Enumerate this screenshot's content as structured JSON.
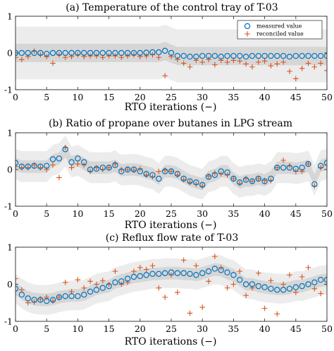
{
  "chart_data": [
    {
      "type": "scatter",
      "title": "(a) Temperature of the control tray of T-03",
      "xlabel": "RTO iterations (−)",
      "ylabel": "",
      "xlim": [
        0,
        50
      ],
      "ylim": [
        -1,
        1
      ],
      "xticks": [
        "0",
        "5",
        "10",
        "15",
        "20",
        "25",
        "30",
        "35",
        "40",
        "45",
        "50"
      ],
      "yticks": [
        "-1",
        "0",
        "1"
      ],
      "legend": {
        "placement": "top-right",
        "entries": [
          "measured value",
          "reconciled value"
        ]
      },
      "bands": {
        "inner_half_width": [
          0.25,
          0.25
        ],
        "outer_half_width": [
          0.72,
          0.72
        ],
        "center": [
          0.0,
          0.0,
          0.0,
          0.0,
          0.0,
          0.0,
          0.0,
          0.0,
          0.0,
          0.0,
          0.0,
          0.0,
          0.0,
          0.0,
          0.0,
          0.0,
          0.0,
          0.0,
          0.0,
          0.0,
          0.0,
          0.0,
          0.0,
          0.0,
          0.05,
          -0.02,
          -0.08,
          -0.08,
          -0.08,
          -0.08,
          -0.08,
          -0.08,
          -0.08,
          -0.08,
          -0.08,
          -0.08,
          -0.08,
          -0.08,
          -0.08,
          -0.08,
          -0.08,
          -0.08,
          -0.08,
          -0.08,
          -0.08,
          -0.08,
          -0.08,
          -0.08,
          -0.08,
          -0.08,
          -0.08
        ]
      },
      "series": [
        {
          "name": "measured value",
          "marker": "circle",
          "color": "#0072BD",
          "x": [
            0,
            1,
            2,
            3,
            4,
            5,
            6,
            7,
            8,
            9,
            10,
            11,
            12,
            13,
            14,
            15,
            16,
            17,
            18,
            19,
            20,
            21,
            22,
            23,
            24,
            25,
            26,
            27,
            28,
            29,
            30,
            31,
            32,
            33,
            34,
            35,
            36,
            37,
            38,
            39,
            40,
            41,
            42,
            43,
            44,
            45,
            46,
            47,
            48,
            49,
            50
          ],
          "y": [
            0.0,
            0.0,
            0.0,
            0.0,
            0.0,
            -0.02,
            0.0,
            0.0,
            0.0,
            0.0,
            0.0,
            0.0,
            0.0,
            0.0,
            0.0,
            0.0,
            0.0,
            0.0,
            0.0,
            0.0,
            0.0,
            0.01,
            0.02,
            0.02,
            0.06,
            0.0,
            -0.08,
            -0.08,
            -0.1,
            -0.1,
            -0.08,
            -0.08,
            -0.08,
            -0.1,
            -0.08,
            -0.08,
            -0.08,
            -0.1,
            -0.08,
            -0.08,
            -0.08,
            -0.08,
            -0.08,
            -0.08,
            -0.1,
            -0.08,
            -0.08,
            -0.08,
            -0.08,
            -0.08,
            -0.08
          ]
        },
        {
          "name": "reconciled value",
          "marker": "plus",
          "color": "#D95319",
          "x": [
            0,
            1,
            2,
            3,
            4,
            5,
            6,
            7,
            8,
            9,
            10,
            11,
            12,
            13,
            14,
            15,
            16,
            17,
            18,
            19,
            20,
            21,
            22,
            23,
            24,
            25,
            26,
            27,
            28,
            29,
            30,
            31,
            32,
            33,
            34,
            35,
            36,
            37,
            38,
            39,
            40,
            41,
            42,
            43,
            44,
            45,
            46,
            47,
            48,
            49,
            50
          ],
          "y": [
            -0.12,
            -0.18,
            -0.1,
            0.05,
            -0.05,
            -0.1,
            -0.28,
            -0.05,
            -0.12,
            -0.1,
            -0.05,
            -0.1,
            -0.08,
            -0.08,
            -0.12,
            -0.08,
            -0.08,
            -0.12,
            -0.08,
            -0.05,
            -0.1,
            -0.08,
            -0.05,
            -0.12,
            -0.62,
            -0.1,
            -0.18,
            -0.28,
            -0.38,
            -0.2,
            -0.25,
            -0.18,
            -0.32,
            -0.2,
            -0.25,
            -0.2,
            -0.22,
            -0.3,
            -0.38,
            -0.25,
            -0.22,
            -0.35,
            -0.3,
            -0.25,
            -0.5,
            -0.7,
            -0.42,
            -0.28,
            -0.38,
            -0.28,
            -0.48
          ]
        }
      ]
    },
    {
      "type": "scatter",
      "title": "(b) Ratio of propane over butanes in LPG stream",
      "xlabel": "RTO iterations (−)",
      "ylabel": "",
      "xlim": [
        0,
        50
      ],
      "ylim": [
        -1,
        1
      ],
      "xticks": [
        "0",
        "5",
        "10",
        "15",
        "20",
        "25",
        "30",
        "35",
        "40",
        "45",
        "50"
      ],
      "yticks": [
        "-1",
        "0",
        "1"
      ],
      "bands": {
        "inner_half_width": [
          0.17,
          0.17
        ],
        "outer_half_width": [
          0.42,
          0.42
        ],
        "center": [
          0.15,
          0.08,
          0.08,
          0.08,
          0.08,
          0.08,
          0.25,
          0.3,
          0.5,
          0.2,
          0.25,
          0.15,
          0.05,
          0.05,
          0.05,
          0.05,
          0.1,
          -0.02,
          0.0,
          0.0,
          -0.02,
          -0.08,
          -0.12,
          -0.25,
          -0.05,
          -0.05,
          -0.1,
          -0.2,
          -0.3,
          -0.35,
          -0.4,
          -0.2,
          -0.15,
          -0.05,
          -0.05,
          -0.25,
          -0.35,
          -0.3,
          -0.3,
          -0.25,
          -0.3,
          -0.2,
          0.05,
          0.05,
          0.05,
          0.02,
          0.05,
          0.1,
          -0.3,
          0.1,
          0.15
        ]
      },
      "series": [
        {
          "name": "measured value",
          "marker": "circle",
          "color": "#0072BD",
          "x": [
            0,
            1,
            2,
            3,
            4,
            5,
            6,
            7,
            8,
            9,
            10,
            11,
            12,
            13,
            14,
            15,
            16,
            17,
            18,
            19,
            20,
            21,
            22,
            23,
            24,
            25,
            26,
            27,
            28,
            29,
            30,
            31,
            32,
            33,
            34,
            35,
            36,
            37,
            38,
            39,
            40,
            41,
            42,
            43,
            44,
            45,
            46,
            47,
            48,
            49,
            50
          ],
          "y": [
            0.18,
            0.08,
            0.08,
            0.1,
            0.08,
            0.1,
            0.28,
            0.3,
            0.55,
            0.2,
            0.3,
            0.2,
            0.0,
            0.02,
            0.05,
            0.05,
            0.12,
            -0.05,
            0.0,
            0.0,
            -0.05,
            -0.12,
            -0.15,
            -0.25,
            -0.05,
            -0.05,
            -0.12,
            -0.25,
            -0.32,
            -0.35,
            -0.42,
            -0.2,
            -0.15,
            -0.05,
            -0.08,
            -0.25,
            -0.35,
            -0.28,
            -0.32,
            -0.25,
            -0.32,
            -0.25,
            0.05,
            0.05,
            0.05,
            0.02,
            0.05,
            0.15,
            -0.4,
            0.1,
            0.18
          ]
        },
        {
          "name": "reconciled value",
          "marker": "plus",
          "color": "#D95319",
          "x": [
            0,
            1,
            2,
            3,
            4,
            5,
            6,
            7,
            8,
            9,
            10,
            11,
            12,
            13,
            14,
            15,
            16,
            17,
            18,
            19,
            20,
            21,
            22,
            23,
            24,
            25,
            26,
            27,
            28,
            29,
            30,
            31,
            32,
            33,
            34,
            35,
            36,
            37,
            38,
            39,
            40,
            41,
            42,
            43,
            44,
            45,
            46,
            47,
            48,
            49,
            50
          ],
          "y": [
            0.08,
            0.05,
            0.05,
            0.12,
            0.05,
            0.0,
            0.12,
            -0.22,
            0.6,
            0.05,
            0.15,
            0.12,
            -0.05,
            0.05,
            0.0,
            0.05,
            0.15,
            0.0,
            0.0,
            -0.02,
            0.02,
            -0.15,
            -0.2,
            -0.05,
            -0.02,
            -0.05,
            -0.15,
            -0.28,
            -0.35,
            -0.4,
            -0.45,
            -0.18,
            -0.1,
            -0.12,
            -0.15,
            -0.25,
            -0.38,
            -0.25,
            -0.32,
            -0.25,
            -0.3,
            -0.3,
            0.05,
            0.25,
            0.1,
            -0.05,
            -0.05,
            0.15,
            -0.45,
            0.05,
            0.12
          ]
        }
      ]
    },
    {
      "type": "scatter",
      "title": "(c) Reflux flow rate of T-03",
      "xlabel": "RTO iterations (−)",
      "ylabel": "",
      "xlim": [
        0,
        50
      ],
      "ylim": [
        -1,
        1
      ],
      "xticks": [
        "0",
        "5",
        "10",
        "15",
        "20",
        "25",
        "30",
        "35",
        "40",
        "45",
        "50"
      ],
      "yticks": [
        "-1",
        "0",
        "1"
      ],
      "bands": {
        "inner_half_width": [
          0.17,
          0.17
        ],
        "outer_half_width": [
          0.4,
          0.4
        ],
        "center": [
          -0.12,
          -0.25,
          -0.35,
          -0.4,
          -0.42,
          -0.42,
          -0.4,
          -0.35,
          -0.32,
          -0.3,
          -0.3,
          -0.28,
          -0.2,
          -0.12,
          -0.08,
          -0.05,
          0.05,
          0.1,
          0.15,
          0.2,
          0.22,
          0.25,
          0.28,
          0.28,
          0.3,
          0.3,
          0.3,
          0.28,
          0.28,
          0.25,
          0.3,
          0.35,
          0.4,
          0.38,
          0.3,
          0.25,
          0.12,
          0.0,
          0.0,
          -0.05,
          -0.08,
          -0.1,
          -0.12,
          -0.12,
          -0.1,
          -0.05,
          -0.05,
          0.0,
          0.05,
          0.1,
          0.12
        ]
      },
      "series": [
        {
          "name": "measured value",
          "marker": "circle",
          "color": "#0072BD",
          "x": [
            0,
            1,
            2,
            3,
            4,
            5,
            6,
            7,
            8,
            9,
            10,
            11,
            12,
            13,
            14,
            15,
            16,
            17,
            18,
            19,
            20,
            21,
            22,
            23,
            24,
            25,
            26,
            27,
            28,
            29,
            30,
            31,
            32,
            33,
            34,
            35,
            36,
            37,
            38,
            39,
            40,
            41,
            42,
            43,
            44,
            45,
            46,
            47,
            48,
            49,
            50
          ],
          "y": [
            -0.12,
            -0.28,
            -0.38,
            -0.42,
            -0.42,
            -0.45,
            -0.42,
            -0.35,
            -0.32,
            -0.32,
            -0.32,
            -0.28,
            -0.2,
            -0.15,
            -0.1,
            -0.05,
            0.05,
            0.08,
            0.15,
            0.2,
            0.22,
            0.25,
            0.28,
            0.28,
            0.3,
            0.32,
            0.3,
            0.3,
            0.28,
            0.25,
            0.3,
            0.35,
            0.42,
            0.38,
            0.32,
            0.25,
            0.12,
            0.0,
            0.0,
            -0.05,
            -0.08,
            -0.12,
            -0.15,
            -0.15,
            -0.12,
            -0.08,
            -0.05,
            0.0,
            0.05,
            0.12,
            0.12
          ]
        },
        {
          "name": "reconciled value",
          "marker": "plus",
          "color": "#D95319",
          "x": [
            0,
            1,
            2,
            3,
            4,
            5,
            6,
            7,
            8,
            9,
            10,
            11,
            12,
            13,
            14,
            15,
            16,
            17,
            18,
            19,
            20,
            21,
            22,
            23,
            24,
            25,
            26,
            27,
            28,
            29,
            30,
            31,
            32,
            33,
            34,
            35,
            36,
            37,
            38,
            39,
            40,
            41,
            42,
            43,
            44,
            45,
            46,
            47,
            48,
            49,
            50
          ],
          "y": [
            0.15,
            -0.15,
            -0.5,
            -0.48,
            -0.4,
            -0.35,
            -0.45,
            -0.35,
            0.05,
            -0.2,
            0.12,
            -0.1,
            0.08,
            0.0,
            0.1,
            0.0,
            0.35,
            0.0,
            0.05,
            0.35,
            0.45,
            0.4,
            0.5,
            -0.1,
            -0.35,
            0.25,
            -0.22,
            0.65,
            -0.78,
            0.5,
            -0.62,
            0.08,
            0.75,
            0.45,
            -0.1,
            0.0,
            0.35,
            -0.3,
            -0.1,
            0.3,
            -0.65,
            0.1,
            -0.8,
            0.0,
            0.25,
            -0.22,
            0.2,
            0.45,
            -0.12,
            -0.25,
            0.0
          ]
        }
      ]
    }
  ]
}
